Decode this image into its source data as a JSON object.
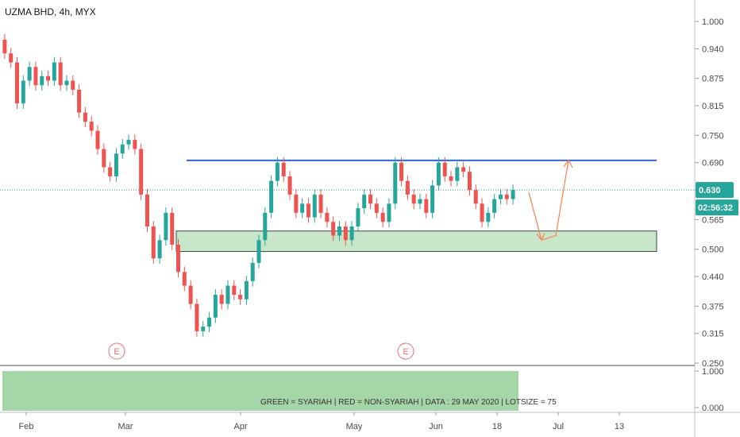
{
  "header": {
    "symbol_line": "UZMA BHD, 4h, MYX"
  },
  "colors": {
    "up": "#26a69a",
    "down": "#ef5350",
    "resistance_line": "#2962ff",
    "support_zone_fill": "#c8e6c9",
    "support_zone_stroke": "#3c4a3c",
    "price_line": "#26a69a",
    "forecast_arrow": "#f4885a",
    "earnings_marker": "#e57373",
    "indicator_fill": "#a5d6a7"
  },
  "price_badge": {
    "value": "0.630",
    "countdown": "02:56:32"
  },
  "earnings_marker": {
    "label": "E"
  },
  "indicator": {
    "note": "GREEN = SYARIAH   |   RED = NON-SYARIAH   |  DATA : 29 MAY 2020   |   LOTSIZE = 75",
    "ticks": [
      "1.000",
      "0.000"
    ]
  },
  "chart_data": {
    "type": "candlestick",
    "title": "UZMA BHD, 4h, MYX",
    "y_ticks": [
      "1.000",
      "0.940",
      "0.875",
      "0.815",
      "0.750",
      "0.690",
      "0.630",
      "0.565",
      "0.500",
      "0.440",
      "0.375",
      "0.315",
      "0.250"
    ],
    "x_ticks": [
      "Feb",
      "Mar",
      "Apr",
      "May",
      "Jun",
      "18",
      "Jul",
      "13"
    ],
    "ylim": [
      0.25,
      1.0
    ],
    "last_price": 0.63,
    "resistance_level": 0.695,
    "support_zone": [
      0.495,
      0.54
    ],
    "ohlc_path": [
      [
        0.96,
        0.93
      ],
      [
        0.93,
        0.91
      ],
      [
        0.91,
        0.82
      ],
      [
        0.82,
        0.87
      ],
      [
        0.87,
        0.9
      ],
      [
        0.9,
        0.86
      ],
      [
        0.86,
        0.88
      ],
      [
        0.88,
        0.87
      ],
      [
        0.87,
        0.91
      ],
      [
        0.91,
        0.86
      ],
      [
        0.86,
        0.87
      ],
      [
        0.87,
        0.85
      ],
      [
        0.85,
        0.8
      ],
      [
        0.8,
        0.78
      ],
      [
        0.78,
        0.76
      ],
      [
        0.76,
        0.72
      ],
      [
        0.72,
        0.68
      ],
      [
        0.68,
        0.66
      ],
      [
        0.66,
        0.71
      ],
      [
        0.71,
        0.73
      ],
      [
        0.73,
        0.74
      ],
      [
        0.74,
        0.72
      ],
      [
        0.72,
        0.62
      ],
      [
        0.62,
        0.55
      ],
      [
        0.55,
        0.48
      ],
      [
        0.48,
        0.52
      ],
      [
        0.52,
        0.58
      ],
      [
        0.58,
        0.51
      ],
      [
        0.51,
        0.45
      ],
      [
        0.45,
        0.42
      ],
      [
        0.42,
        0.38
      ],
      [
        0.38,
        0.32
      ],
      [
        0.32,
        0.33
      ],
      [
        0.33,
        0.35
      ],
      [
        0.35,
        0.4
      ],
      [
        0.4,
        0.38
      ],
      [
        0.38,
        0.42
      ],
      [
        0.42,
        0.4
      ],
      [
        0.4,
        0.39
      ],
      [
        0.39,
        0.43
      ],
      [
        0.43,
        0.47
      ],
      [
        0.47,
        0.52
      ],
      [
        0.52,
        0.58
      ],
      [
        0.58,
        0.65
      ],
      [
        0.65,
        0.69
      ],
      [
        0.69,
        0.66
      ],
      [
        0.66,
        0.62
      ],
      [
        0.62,
        0.58
      ],
      [
        0.58,
        0.6
      ],
      [
        0.6,
        0.57
      ],
      [
        0.57,
        0.62
      ],
      [
        0.62,
        0.58
      ],
      [
        0.58,
        0.56
      ],
      [
        0.56,
        0.53
      ],
      [
        0.53,
        0.55
      ],
      [
        0.55,
        0.52
      ],
      [
        0.52,
        0.55
      ],
      [
        0.55,
        0.59
      ],
      [
        0.59,
        0.62
      ],
      [
        0.62,
        0.6
      ],
      [
        0.6,
        0.58
      ],
      [
        0.58,
        0.56
      ],
      [
        0.56,
        0.6
      ],
      [
        0.6,
        0.69
      ],
      [
        0.69,
        0.65
      ],
      [
        0.65,
        0.62
      ],
      [
        0.62,
        0.6
      ],
      [
        0.6,
        0.61
      ],
      [
        0.61,
        0.58
      ],
      [
        0.58,
        0.64
      ],
      [
        0.64,
        0.69
      ],
      [
        0.69,
        0.66
      ],
      [
        0.66,
        0.65
      ],
      [
        0.65,
        0.68
      ],
      [
        0.68,
        0.67
      ],
      [
        0.67,
        0.63
      ],
      [
        0.63,
        0.6
      ],
      [
        0.6,
        0.56
      ],
      [
        0.56,
        0.58
      ],
      [
        0.58,
        0.61
      ],
      [
        0.61,
        0.62
      ],
      [
        0.62,
        0.61
      ],
      [
        0.61,
        0.63
      ]
    ],
    "forecast_path": [
      [
        0.625,
        0.63
      ],
      [
        0.52,
        0.63
      ],
      [
        0.53,
        0.63
      ],
      [
        0.695,
        0.63
      ]
    ]
  }
}
